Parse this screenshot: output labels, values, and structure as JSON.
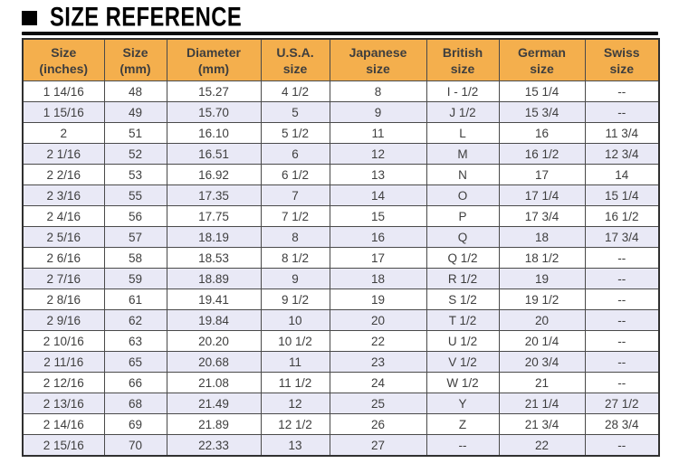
{
  "page": {
    "title": "SIZE REFERENCE"
  },
  "colors": {
    "header_bg": "#F4AF4D",
    "row_alt_bg": "#E9E9F6",
    "border_color": "#4A4A4A",
    "outer_border": "#303030",
    "text_color": "#3E3E3E",
    "title_rule": "#0B0B0B"
  },
  "chart_data": {
    "type": "table",
    "title": "SIZE REFERENCE",
    "columns": [
      "Size (inches)",
      "Size (mm)",
      "Diameter (mm)",
      "U.S.A. size",
      "Japanese size",
      "British size",
      "German size",
      "Swiss size"
    ],
    "header_lines": [
      [
        "Size",
        "(inches)"
      ],
      [
        "Size",
        "(mm)"
      ],
      [
        "Diameter",
        "(mm)"
      ],
      [
        "U.S.A.",
        "size"
      ],
      [
        "Japanese",
        "size"
      ],
      [
        "British",
        "size"
      ],
      [
        "German",
        "size"
      ],
      [
        "Swiss",
        "size"
      ]
    ],
    "rows": [
      [
        "1 14/16",
        "48",
        "15.27",
        "4 1/2",
        "8",
        "I - 1/2",
        "15 1/4",
        "--"
      ],
      [
        "1 15/16",
        "49",
        "15.70",
        "5",
        "9",
        "J 1/2",
        "15 3/4",
        "--"
      ],
      [
        "2",
        "51",
        "16.10",
        "5 1/2",
        "11",
        "L",
        "16",
        "11 3/4"
      ],
      [
        "2 1/16",
        "52",
        "16.51",
        "6",
        "12",
        "M",
        "16 1/2",
        "12 3/4"
      ],
      [
        "2 2/16",
        "53",
        "16.92",
        "6 1/2",
        "13",
        "N",
        "17",
        "14"
      ],
      [
        "2 3/16",
        "55",
        "17.35",
        "7",
        "14",
        "O",
        "17 1/4",
        "15 1/4"
      ],
      [
        "2 4/16",
        "56",
        "17.75",
        "7 1/2",
        "15",
        "P",
        "17 3/4",
        "16 1/2"
      ],
      [
        "2 5/16",
        "57",
        "18.19",
        "8",
        "16",
        "Q",
        "18",
        "17 3/4"
      ],
      [
        "2 6/16",
        "58",
        "18.53",
        "8 1/2",
        "17",
        "Q 1/2",
        "18 1/2",
        "--"
      ],
      [
        "2 7/16",
        "59",
        "18.89",
        "9",
        "18",
        "R 1/2",
        "19",
        "--"
      ],
      [
        "2 8/16",
        "61",
        "19.41",
        "9 1/2",
        "19",
        "S 1/2",
        "19 1/2",
        "--"
      ],
      [
        "2 9/16",
        "62",
        "19.84",
        "10",
        "20",
        "T 1/2",
        "20",
        "--"
      ],
      [
        "2 10/16",
        "63",
        "20.20",
        "10 1/2",
        "22",
        "U 1/2",
        "20 1/4",
        "--"
      ],
      [
        "2 11/16",
        "65",
        "20.68",
        "11",
        "23",
        "V 1/2",
        "20 3/4",
        "--"
      ],
      [
        "2 12/16",
        "66",
        "21.08",
        "11 1/2",
        "24",
        "W 1/2",
        "21",
        "--"
      ],
      [
        "2 13/16",
        "68",
        "21.49",
        "12",
        "25",
        "Y",
        "21 1/4",
        "27 1/2"
      ],
      [
        "2 14/16",
        "69",
        "21.89",
        "12 1/2",
        "26",
        "Z",
        "21 3/4",
        "28 3/4"
      ],
      [
        "2 15/16",
        "70",
        "22.33",
        "13",
        "27",
        "--",
        "22",
        "--"
      ]
    ]
  }
}
